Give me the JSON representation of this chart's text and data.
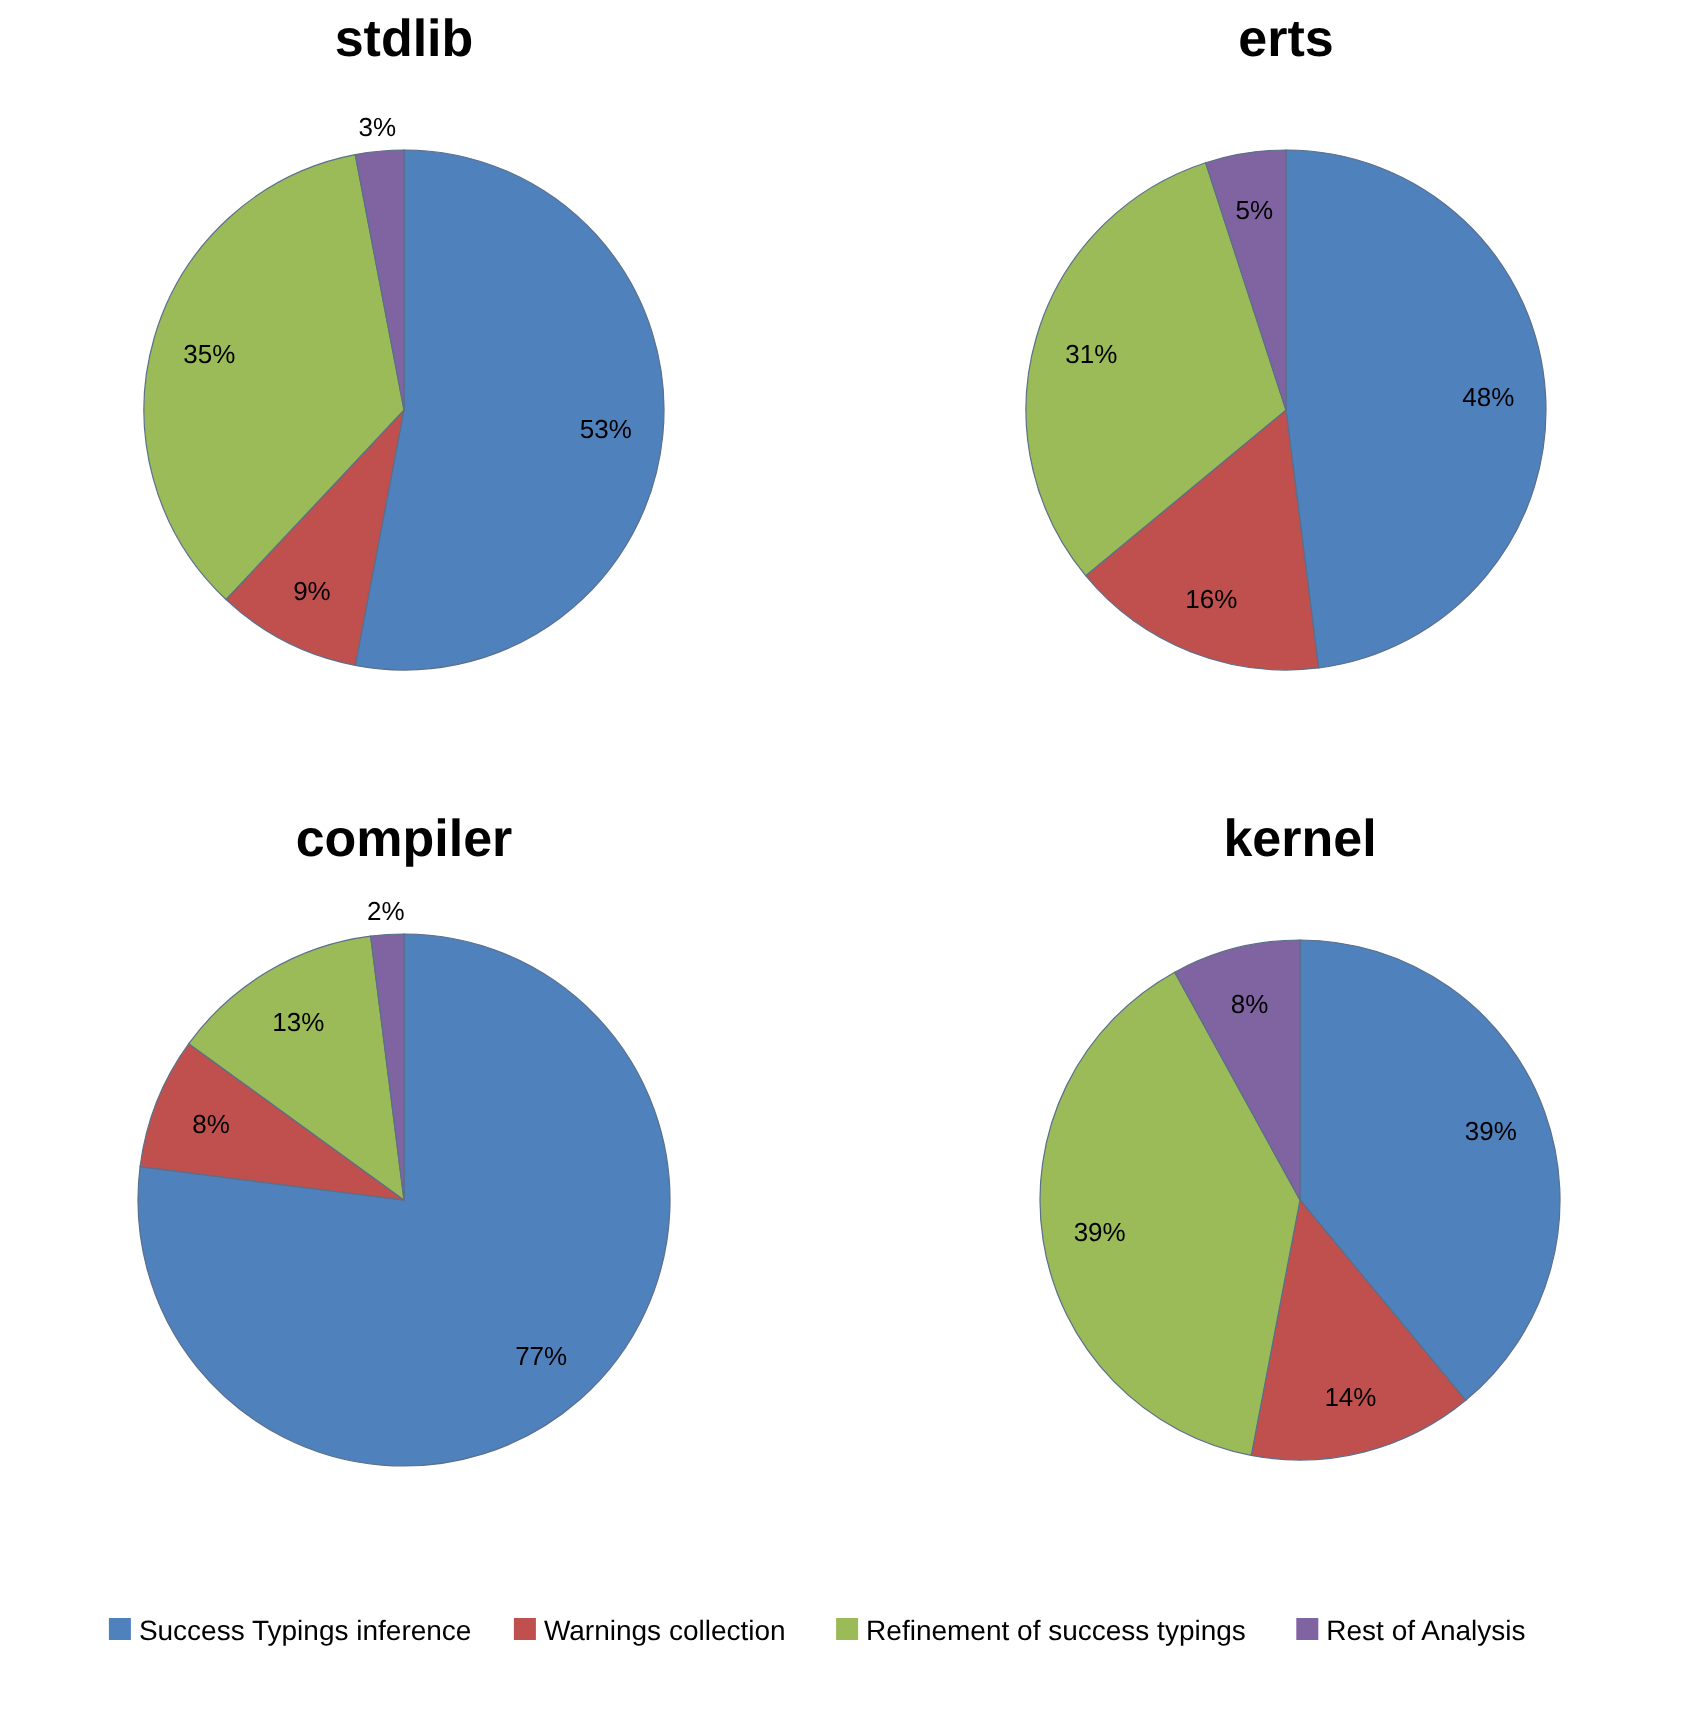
{
  "chart_data": [
    {
      "type": "pie",
      "title": "stdlib",
      "categories": [
        "Success Typings inference",
        "Warnings collection",
        "Refinement of success typings",
        "Rest of Analysis"
      ],
      "values": [
        53,
        9,
        35,
        3
      ],
      "value_labels": [
        "53%",
        "9%",
        "35%",
        "3%"
      ],
      "colors": [
        "#4f81bd",
        "#c0504d",
        "#9bbb59",
        "#8064a2"
      ],
      "legend": "bottom"
    },
    {
      "type": "pie",
      "title": "erts",
      "categories": [
        null,
        null,
        null,
        null
      ],
      "values": [
        48,
        16,
        31,
        5
      ],
      "value_labels": [
        "48%",
        "16%",
        "31%",
        "5%"
      ],
      "colors": [
        "#4f81bd",
        "#c0504d",
        "#9bbb59",
        "#8064a2"
      ]
    },
    {
      "type": "pie",
      "title": "compiler",
      "categories": [
        null,
        null,
        null,
        null
      ],
      "values": [
        77,
        8,
        13,
        2
      ],
      "value_labels": [
        "77%",
        "8%",
        "13%",
        "2%"
      ],
      "colors": [
        "#4f81bd",
        "#c0504d",
        "#9bbb59",
        "#8064a2"
      ]
    },
    {
      "type": "pie",
      "title": "kernel",
      "categories": [
        null,
        null,
        null,
        null
      ],
      "values": [
        39,
        14,
        39,
        8
      ],
      "value_labels": [
        "39%",
        "14%",
        "39%",
        "8%"
      ],
      "colors": [
        "#4f81bd",
        "#c0504d",
        "#9bbb59",
        "#8064a2"
      ]
    }
  ]
}
